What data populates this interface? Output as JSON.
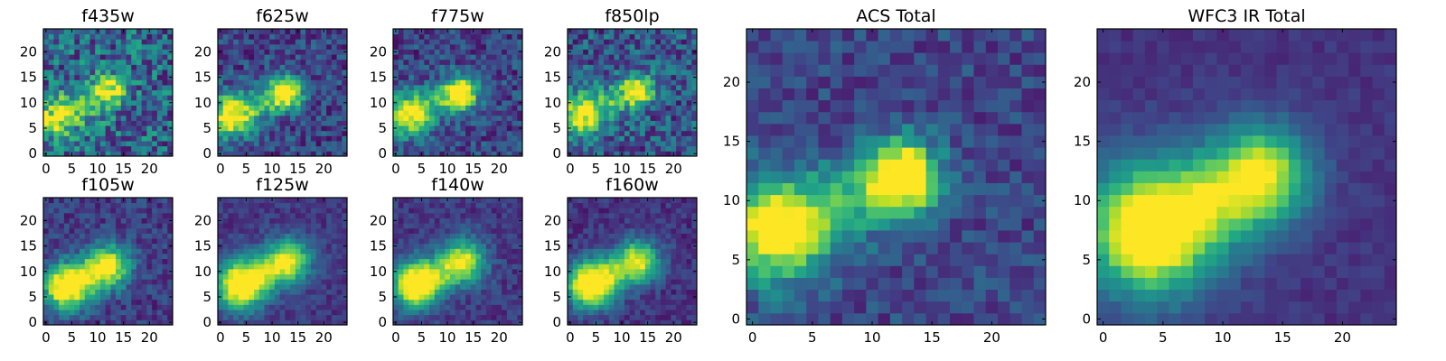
{
  "colormap": "viridis",
  "chart_data": [
    {
      "type": "heatmap",
      "title": "f435w",
      "grid": false,
      "xlim": [
        0,
        24
      ],
      "ylim": [
        0,
        24
      ],
      "xticks": [
        0,
        5,
        10,
        15,
        20
      ],
      "yticks": [
        0,
        5,
        10,
        15,
        20
      ],
      "blob": {
        "core": [
          12.5,
          12.5
        ],
        "core_sigma": 2.0,
        "core_amp": 0.35,
        "tail": [
          2,
          7
        ],
        "tail_amp": 0.3,
        "noise": 0.55,
        "base": 0.55
      }
    },
    {
      "type": "heatmap",
      "title": "f625w",
      "grid": false,
      "xlim": [
        0,
        24
      ],
      "ylim": [
        0,
        24
      ],
      "xticks": [
        0,
        5,
        10,
        15,
        20
      ],
      "yticks": [
        0,
        5,
        10,
        15,
        20
      ],
      "blob": {
        "core": [
          12.5,
          12
        ],
        "core_sigma": 2.2,
        "core_amp": 0.7,
        "tail": [
          2,
          7.5
        ],
        "tail_amp": 0.55,
        "noise": 0.35,
        "base": 0.35
      }
    },
    {
      "type": "heatmap",
      "title": "f775w",
      "grid": false,
      "xlim": [
        0,
        24
      ],
      "ylim": [
        0,
        24
      ],
      "xticks": [
        0,
        5,
        10,
        15,
        20
      ],
      "yticks": [
        0,
        5,
        10,
        15,
        20
      ],
      "blob": {
        "core": [
          12.5,
          12
        ],
        "core_sigma": 2.2,
        "core_amp": 0.7,
        "tail": [
          2,
          7.5
        ],
        "tail_amp": 0.5,
        "noise": 0.35,
        "base": 0.35
      }
    },
    {
      "type": "heatmap",
      "title": "f850lp",
      "grid": false,
      "xlim": [
        0,
        24
      ],
      "ylim": [
        0,
        24
      ],
      "xticks": [
        0,
        5,
        10,
        15,
        20
      ],
      "yticks": [
        0,
        5,
        10,
        15,
        20
      ],
      "blob": {
        "core": [
          13,
          12.5
        ],
        "core_sigma": 2.0,
        "core_amp": 0.5,
        "tail": [
          2,
          7.5
        ],
        "tail_amp": 0.45,
        "noise": 0.45,
        "base": 0.45
      }
    },
    {
      "type": "heatmap",
      "title": "f105w",
      "grid": false,
      "xlim": [
        0,
        24
      ],
      "ylim": [
        0,
        24
      ],
      "xticks": [
        0,
        5,
        10,
        15,
        20
      ],
      "yticks": [
        0,
        5,
        10,
        15,
        20
      ],
      "blob": {
        "core": [
          4,
          7
        ],
        "core_sigma": 3.2,
        "core_amp": 0.75,
        "tail": [
          12,
          11
        ],
        "tail_amp": 0.55,
        "noise": 0.25,
        "base": 0.3
      }
    },
    {
      "type": "heatmap",
      "title": "f125w",
      "grid": false,
      "xlim": [
        0,
        24
      ],
      "ylim": [
        0,
        24
      ],
      "xticks": [
        0,
        5,
        10,
        15,
        20
      ],
      "yticks": [
        0,
        5,
        10,
        15,
        20
      ],
      "blob": {
        "core": [
          4,
          7.5
        ],
        "core_sigma": 3.5,
        "core_amp": 0.8,
        "tail": [
          13,
          12
        ],
        "tail_amp": 0.55,
        "noise": 0.18,
        "base": 0.28
      }
    },
    {
      "type": "heatmap",
      "title": "f140w",
      "grid": false,
      "xlim": [
        0,
        24
      ],
      "ylim": [
        0,
        24
      ],
      "xticks": [
        0,
        5,
        10,
        15,
        20
      ],
      "yticks": [
        0,
        5,
        10,
        15,
        20
      ],
      "blob": {
        "core": [
          4,
          7.5
        ],
        "core_sigma": 3.3,
        "core_amp": 0.8,
        "tail": [
          13,
          12
        ],
        "tail_amp": 0.5,
        "noise": 0.2,
        "base": 0.28
      }
    },
    {
      "type": "heatmap",
      "title": "f160w",
      "grid": false,
      "xlim": [
        0,
        24
      ],
      "ylim": [
        0,
        24
      ],
      "xticks": [
        0,
        5,
        10,
        15,
        20
      ],
      "yticks": [
        0,
        5,
        10,
        15,
        20
      ],
      "blob": {
        "core": [
          4,
          7.5
        ],
        "core_sigma": 3.3,
        "core_amp": 0.85,
        "tail": [
          13,
          12
        ],
        "tail_amp": 0.5,
        "noise": 0.2,
        "base": 0.25
      }
    },
    {
      "type": "heatmap",
      "title": "ACS Total",
      "grid": false,
      "xlim": [
        0,
        24
      ],
      "ylim": [
        0,
        24
      ],
      "xticks": [
        0,
        5,
        10,
        15,
        20
      ],
      "yticks": [
        0,
        5,
        10,
        15,
        20
      ],
      "blob": {
        "core": [
          12.5,
          12
        ],
        "core_sigma": 2.0,
        "core_amp": 0.75,
        "tail": [
          2,
          7.5
        ],
        "tail_amp": 0.6,
        "noise": 0.25,
        "base": 0.35
      }
    },
    {
      "type": "heatmap",
      "title": "WFC3 IR Total",
      "grid": false,
      "xlim": [
        0,
        24
      ],
      "ylim": [
        0,
        24
      ],
      "xticks": [
        0,
        5,
        10,
        15,
        20
      ],
      "yticks": [
        0,
        5,
        10,
        15,
        20
      ],
      "blob": {
        "core": [
          4,
          7.5
        ],
        "core_sigma": 4.0,
        "core_amp": 0.85,
        "tail": [
          13,
          12
        ],
        "tail_amp": 0.55,
        "noise": 0.1,
        "base": 0.25
      }
    }
  ]
}
